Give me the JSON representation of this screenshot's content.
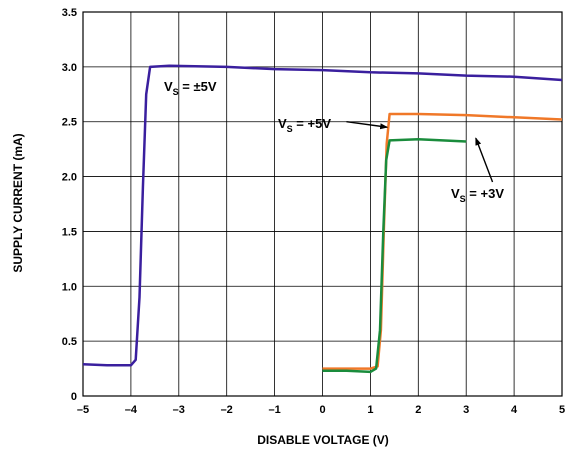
{
  "chart_data": {
    "type": "line",
    "title": "",
    "xlabel": "DISABLE VOLTAGE (V)",
    "ylabel": "SUPPLY CURRENT (mA)",
    "xlim": [
      -5,
      5
    ],
    "ylim": [
      0,
      3.5
    ],
    "xticks": [
      -5,
      -4,
      -3,
      -2,
      -1,
      0,
      1,
      2,
      3,
      4,
      5
    ],
    "yticks": [
      0,
      0.5,
      1.0,
      1.5,
      2.0,
      2.5,
      3.0,
      3.5
    ],
    "xtick_labels": [
      "–5",
      "–4",
      "–3",
      "–2",
      "–1",
      "0",
      "1",
      "2",
      "3",
      "4",
      "5"
    ],
    "ytick_labels": [
      "0",
      "0.5",
      "1.0",
      "1.5",
      "2.0",
      "2.5",
      "3.0",
      "3.5"
    ],
    "grid": true,
    "series": [
      {
        "name": "VS = ±5V",
        "color": "#3a1f9e",
        "points": [
          [
            -5,
            0.29
          ],
          [
            -4.5,
            0.28
          ],
          [
            -4.0,
            0.28
          ],
          [
            -3.9,
            0.33
          ],
          [
            -3.82,
            0.9
          ],
          [
            -3.75,
            1.9
          ],
          [
            -3.68,
            2.75
          ],
          [
            -3.6,
            3.0
          ],
          [
            -3.2,
            3.01
          ],
          [
            -2.0,
            3.0
          ],
          [
            -1.0,
            2.98
          ],
          [
            0.0,
            2.97
          ],
          [
            1.0,
            2.95
          ],
          [
            2.0,
            2.94
          ],
          [
            3.0,
            2.92
          ],
          [
            4.0,
            2.91
          ],
          [
            5.0,
            2.88
          ]
        ],
        "label": {
          "v": "V",
          "sub": "S",
          "rest": " = ±5V"
        }
      },
      {
        "name": "VS = +5V",
        "color": "#f07828",
        "points": [
          [
            0,
            0.25
          ],
          [
            0.5,
            0.25
          ],
          [
            1.0,
            0.25
          ],
          [
            1.15,
            0.27
          ],
          [
            1.22,
            0.6
          ],
          [
            1.28,
            1.5
          ],
          [
            1.34,
            2.3
          ],
          [
            1.4,
            2.57
          ],
          [
            2.0,
            2.57
          ],
          [
            3.0,
            2.56
          ],
          [
            4.0,
            2.54
          ],
          [
            5.0,
            2.52
          ]
        ],
        "label": {
          "v": "V",
          "sub": "S",
          "rest": " = +5V"
        }
      },
      {
        "name": "VS = +3V",
        "color": "#1a8c3c",
        "points": [
          [
            0,
            0.23
          ],
          [
            0.5,
            0.23
          ],
          [
            1.0,
            0.22
          ],
          [
            1.12,
            0.25
          ],
          [
            1.2,
            0.6
          ],
          [
            1.27,
            1.5
          ],
          [
            1.33,
            2.15
          ],
          [
            1.4,
            2.33
          ],
          [
            2.0,
            2.34
          ],
          [
            2.5,
            2.33
          ],
          [
            3.0,
            2.32
          ]
        ],
        "label": {
          "v": "V",
          "sub": "S",
          "rest": " = +3V"
        }
      }
    ],
    "arrows": [
      {
        "from": [
          0.5,
          2.5
        ],
        "to": [
          1.35,
          2.45
        ]
      },
      {
        "from": [
          3.55,
          1.95
        ],
        "to": [
          3.2,
          2.35
        ]
      }
    ]
  }
}
